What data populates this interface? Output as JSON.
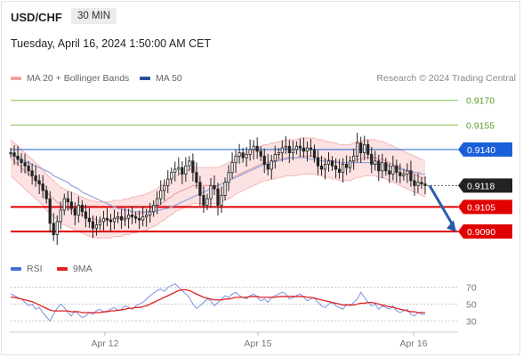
{
  "header": {
    "symbol": "USD/CHF",
    "timeframe": "30 MIN",
    "datetime": "Tuesday, April 16, 2024 1:50:00 AM CET"
  },
  "legend_top": {
    "bollinger_label": "MA 20 + Bollinger Bands",
    "bollinger_color": "#f4a0a0",
    "ma50_label": "MA 50",
    "ma50_color": "#2a4fa0",
    "copyright": "Research © 2024 Trading Central"
  },
  "legend_bottom": {
    "rsi_label": "RSI",
    "rsi_color": "#4a6fd0",
    "ma9_label": "9MA",
    "ma9_color": "#e02020"
  },
  "chart_data": [
    {
      "type": "candlestick",
      "title": "USD/CHF",
      "ylim": [
        0.9078,
        0.9178
      ],
      "levels": [
        {
          "value": 0.917,
          "label": "0.9170",
          "style": "target",
          "color": "#7cc24a"
        },
        {
          "value": 0.9155,
          "label": "0.9155",
          "style": "target",
          "color": "#7cc24a"
        },
        {
          "value": 0.914,
          "label": "0.9140",
          "style": "pivot",
          "color": "#1a5fd8"
        },
        {
          "value": 0.9118,
          "label": "0.9118",
          "style": "last",
          "color": "#222222"
        },
        {
          "value": 0.9105,
          "label": "0.9105",
          "style": "support",
          "color": "#e00000"
        },
        {
          "value": 0.909,
          "label": "0.9090",
          "style": "support",
          "color": "#e00000"
        }
      ],
      "x_ticks": [
        "Apr 12",
        "Apr 15",
        "Apr 16"
      ],
      "close": [
        0.9138,
        0.9136,
        0.9134,
        0.9132,
        0.913,
        0.9127,
        0.9124,
        0.9121,
        0.9119,
        0.9115,
        0.911,
        0.9095,
        0.9088,
        0.9096,
        0.9103,
        0.911,
        0.9108,
        0.9104,
        0.91,
        0.9106,
        0.9102,
        0.9098,
        0.9096,
        0.9092,
        0.9094,
        0.9096,
        0.9098,
        0.9097,
        0.9096,
        0.9098,
        0.9099,
        0.9097,
        0.9098,
        0.91,
        0.9099,
        0.9098,
        0.9097,
        0.9099,
        0.91,
        0.9102,
        0.9106,
        0.911,
        0.9115,
        0.9118,
        0.9122,
        0.9126,
        0.9128,
        0.9129,
        0.9125,
        0.913,
        0.9133,
        0.9126,
        0.912,
        0.9112,
        0.9106,
        0.911,
        0.9118,
        0.9116,
        0.9106,
        0.9112,
        0.912,
        0.9126,
        0.9132,
        0.9136,
        0.9138,
        0.9135,
        0.9137,
        0.914,
        0.9142,
        0.9139,
        0.9136,
        0.9131,
        0.9128,
        0.9133,
        0.9137,
        0.9138,
        0.9141,
        0.9142,
        0.9138,
        0.914,
        0.9142,
        0.9141,
        0.9139,
        0.9141,
        0.914,
        0.9135,
        0.913,
        0.9128,
        0.9131,
        0.9133,
        0.913,
        0.9128,
        0.9126,
        0.9131,
        0.9129,
        0.9133,
        0.9136,
        0.9144,
        0.9138,
        0.9143,
        0.9137,
        0.9131,
        0.9133,
        0.9127,
        0.9132,
        0.9127,
        0.9125,
        0.913,
        0.9126,
        0.9124,
        0.9125,
        0.9127,
        0.9121,
        0.9118,
        0.912,
        0.9119,
        0.9118
      ],
      "ma20": [
        0.9135,
        0.9133,
        0.9131,
        0.9129,
        0.9127,
        0.9125,
        0.9123,
        0.9121,
        0.9119,
        0.9117,
        0.9114,
        0.9112,
        0.911,
        0.9108,
        0.9106,
        0.9105,
        0.9104,
        0.9103,
        0.9102,
        0.9101,
        0.91,
        0.9099,
        0.9098,
        0.9098,
        0.9097,
        0.9097,
        0.9097,
        0.9097,
        0.9097,
        0.9098,
        0.9098,
        0.9098,
        0.9099,
        0.9099,
        0.91,
        0.91,
        0.9101,
        0.9101,
        0.9102,
        0.9103,
        0.9104,
        0.9105,
        0.9107,
        0.9108,
        0.911,
        0.9111,
        0.9113,
        0.9114,
        0.9115,
        0.9116,
        0.9117,
        0.9118,
        0.9118,
        0.9118,
        0.9118,
        0.9118,
        0.9118,
        0.9118,
        0.9118,
        0.9119,
        0.912,
        0.9121,
        0.9122,
        0.9124,
        0.9125,
        0.9126,
        0.9127,
        0.9128,
        0.9129,
        0.913,
        0.9131,
        0.9132,
        0.9132,
        0.9133,
        0.9133,
        0.9134,
        0.9134,
        0.9135,
        0.9135,
        0.9135,
        0.9135,
        0.9136,
        0.9136,
        0.9136,
        0.9136,
        0.9136,
        0.9135,
        0.9135,
        0.9134,
        0.9134,
        0.9133,
        0.9133,
        0.9132,
        0.9132,
        0.9132,
        0.9132,
        0.9133,
        0.9134,
        0.9134,
        0.9135,
        0.9135,
        0.9135,
        0.9135,
        0.9134,
        0.9134,
        0.9133,
        0.9132,
        0.9131,
        0.913,
        0.9129,
        0.9128,
        0.9127,
        0.9126,
        0.9125,
        0.9124,
        0.9123,
        0.9122
      ],
      "ma50": [
        0.9137,
        0.9136,
        0.9135,
        0.9134,
        0.9133,
        0.9132,
        0.9131,
        0.913,
        0.9129,
        0.9128,
        0.9127,
        0.9126,
        0.9124,
        0.9123,
        0.9122,
        0.9121,
        0.912,
        0.9118,
        0.9117,
        0.9116,
        0.9114,
        0.9113,
        0.9112,
        0.9111,
        0.911,
        0.9109,
        0.9108,
        0.9107,
        0.9106,
        0.9105,
        0.9104,
        0.9104,
        0.9103,
        0.9103,
        0.9102,
        0.9102,
        0.9102,
        0.9102,
        0.9102,
        0.9102,
        0.9102,
        0.9103,
        0.9103,
        0.9104,
        0.9104,
        0.9105,
        0.9106,
        0.9107,
        0.9108,
        0.9109,
        0.911,
        0.9111,
        0.9112,
        0.9113,
        0.9114,
        0.9115,
        0.9116,
        0.9117,
        0.9118,
        0.9119,
        0.912,
        0.9121,
        0.9122,
        0.9123,
        0.9124,
        0.9125,
        0.9126,
        0.9127,
        0.9128,
        0.9129,
        0.913,
        0.9131,
        0.9131,
        0.9132,
        0.9133,
        0.9133,
        0.9134,
        0.9134,
        0.9135,
        0.9135,
        0.9135,
        0.9135,
        0.9135,
        0.9135,
        0.9134,
        0.9134,
        0.9134,
        0.9133,
        0.9133,
        0.9133,
        0.9133,
        0.9132,
        0.9132,
        0.9132,
        0.9132,
        0.9132,
        0.9132,
        0.9132,
        0.9132,
        0.9132,
        0.9132,
        0.9132,
        0.9131,
        0.9131,
        0.9131,
        0.913,
        0.913,
        0.9129,
        0.9129,
        0.9128,
        0.9128,
        0.9127,
        0.9127,
        0.9126,
        0.9126,
        0.9125,
        0.9125
      ]
    },
    {
      "type": "line",
      "title": "RSI",
      "ylim": [
        20,
        80
      ],
      "y_ticks": [
        70,
        50,
        30
      ],
      "series": [
        {
          "name": "RSI",
          "values": [
            62,
            60,
            58,
            56,
            52,
            48,
            50,
            44,
            46,
            40,
            35,
            30,
            38,
            45,
            50,
            46,
            40,
            36,
            42,
            38,
            34,
            36,
            40,
            38,
            42,
            44,
            40,
            42,
            44,
            46,
            42,
            44,
            48,
            46,
            44,
            48,
            50,
            52,
            56,
            60,
            63,
            66,
            68,
            65,
            70,
            72,
            74,
            70,
            66,
            62,
            58,
            50,
            45,
            48,
            52,
            56,
            54,
            48,
            52,
            56,
            60,
            58,
            62,
            64,
            60,
            58,
            56,
            60,
            62,
            58,
            54,
            56,
            52,
            58,
            60,
            62,
            64,
            62,
            56,
            58,
            60,
            62,
            58,
            54,
            56,
            58,
            52,
            48,
            46,
            50,
            52,
            48,
            46,
            44,
            50,
            48,
            52,
            56,
            64,
            58,
            52,
            48,
            50,
            44,
            48,
            46,
            44,
            48,
            42,
            40,
            42,
            44,
            38,
            36,
            40,
            38,
            38
          ]
        },
        {
          "name": "9MA",
          "values": [
            58,
            58,
            57,
            56,
            55,
            54,
            53,
            51,
            49,
            47,
            45,
            43,
            42,
            42,
            42,
            42,
            42,
            41,
            41,
            41,
            40,
            40,
            40,
            40,
            40,
            40,
            41,
            41,
            42,
            42,
            43,
            43,
            44,
            45,
            45,
            46,
            46,
            47,
            48,
            50,
            52,
            54,
            56,
            58,
            60,
            62,
            64,
            66,
            67,
            67,
            66,
            64,
            62,
            60,
            58,
            57,
            56,
            55,
            55,
            55,
            56,
            56,
            57,
            58,
            58,
            58,
            58,
            59,
            59,
            59,
            58,
            58,
            58,
            58,
            58,
            59,
            59,
            59,
            59,
            59,
            59,
            59,
            59,
            58,
            58,
            57,
            56,
            55,
            54,
            53,
            52,
            51,
            50,
            49,
            49,
            49,
            49,
            50,
            51,
            51,
            52,
            52,
            51,
            50,
            49,
            48,
            47,
            46,
            45,
            44,
            43,
            42,
            41,
            41,
            40,
            40,
            40
          ]
        }
      ]
    }
  ]
}
